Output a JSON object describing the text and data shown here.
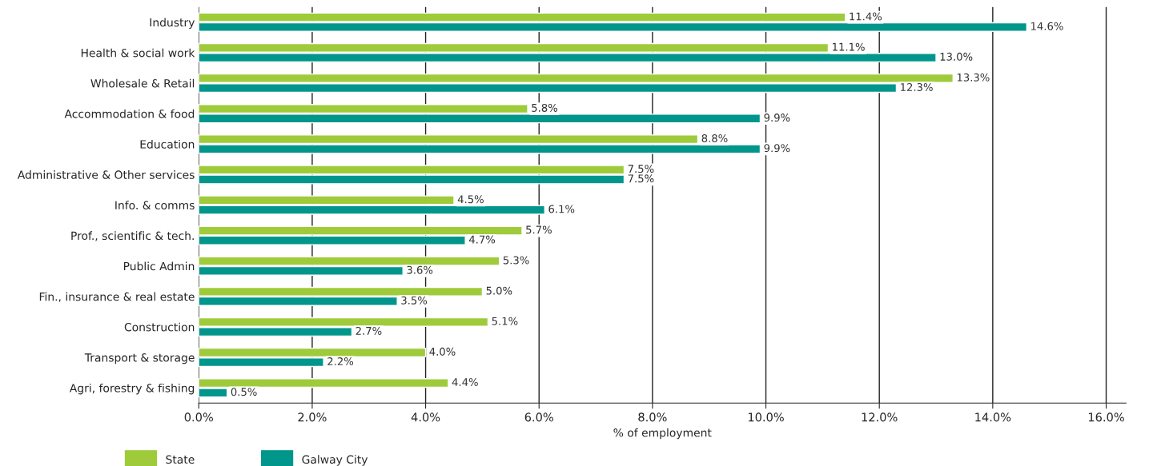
{
  "chart_data": {
    "type": "bar",
    "orientation": "horizontal",
    "xlabel": "% of employment",
    "categories": [
      "Industry",
      "Health & social work",
      "Wholesale & Retail",
      "Accommodation & food",
      "Education",
      "Administrative & Other services",
      "Info. & comms",
      "Prof., scientific & tech.",
      "Public Admin",
      "Fin., insurance & real estate",
      "Construction",
      "Transport & storage",
      "Agri, forestry & fishing"
    ],
    "series": [
      {
        "name": "State",
        "color": "#9fcb3b",
        "values": [
          11.4,
          11.1,
          13.3,
          5.8,
          8.8,
          7.5,
          4.5,
          5.7,
          5.3,
          5.0,
          5.1,
          4.0,
          4.4
        ],
        "value_labels": [
          "11.4%",
          "11.1%",
          "13.3%",
          "5.8%",
          "8.8%",
          "7.5%",
          "4.5%",
          "5.7%",
          "5.3%",
          "5.0%",
          "5.1%",
          "4.0%",
          "4.4%"
        ]
      },
      {
        "name": "Galway City",
        "color": "#00968c",
        "values": [
          14.6,
          13.0,
          12.3,
          9.9,
          9.9,
          7.5,
          6.1,
          4.7,
          3.6,
          3.5,
          2.7,
          2.2,
          0.5
        ],
        "value_labels": [
          "14.6%",
          "13.0%",
          "12.3%",
          "9.9%",
          "9.9%",
          "7.5%",
          "6.1%",
          "4.7%",
          "3.6%",
          "3.5%",
          "2.7%",
          "2.2%",
          "0.5%"
        ]
      }
    ],
    "xlim": [
      0,
      16.35
    ],
    "xticks": [
      {
        "value": 0,
        "label": "0.0%"
      },
      {
        "value": 2,
        "label": "2.0%"
      },
      {
        "value": 4,
        "label": "4.0%"
      },
      {
        "value": 6,
        "label": "6.0%"
      },
      {
        "value": 8,
        "label": "8.0%"
      },
      {
        "value": 10,
        "label": "10.0%"
      },
      {
        "value": 12,
        "label": "12.0%"
      },
      {
        "value": 14,
        "label": "14.0%"
      },
      {
        "value": 16,
        "label": "16.0%"
      }
    ],
    "grid": "x",
    "legend": "bottom left"
  }
}
